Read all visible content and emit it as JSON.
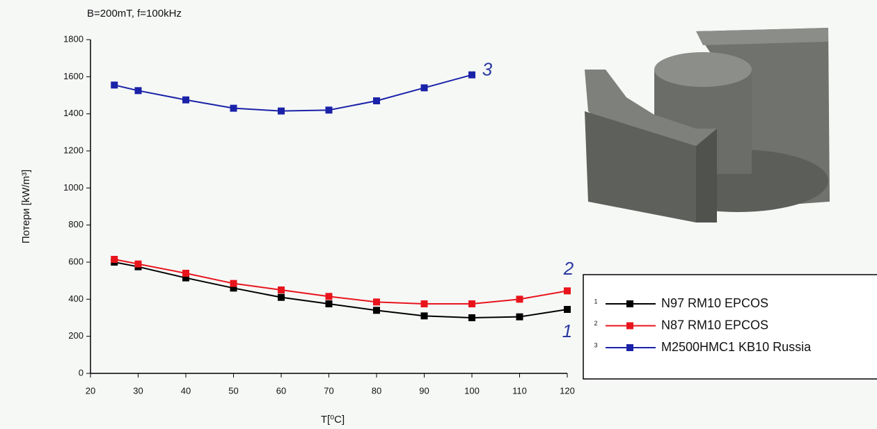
{
  "chart_data": {
    "type": "line",
    "title": "B=200mT, f=100kHz",
    "x_label": "T[⁰C]",
    "y_label": "Потери [kW/m³]",
    "xlim": [
      20,
      120
    ],
    "xticks": [
      20,
      30,
      40,
      50,
      60,
      70,
      80,
      90,
      100,
      110,
      120
    ],
    "ylim": [
      0,
      1800
    ],
    "yticks": [
      0,
      200,
      400,
      600,
      800,
      1000,
      1200,
      1400,
      1600,
      1800
    ],
    "grid": false,
    "legend": "right",
    "series": [
      {
        "name": "N97 RM10 EPCOS",
        "label": "1",
        "color": "#000000",
        "x": [
          25,
          30,
          40,
          50,
          60,
          70,
          80,
          90,
          100,
          110,
          120
        ],
        "values": [
          600,
          575,
          515,
          460,
          410,
          375,
          340,
          310,
          300,
          305,
          345
        ]
      },
      {
        "name": "N87 RM10 EPCOS",
        "label": "2",
        "color": "#e8141c",
        "x": [
          25,
          30,
          40,
          50,
          60,
          70,
          80,
          90,
          100,
          110,
          120
        ],
        "values": [
          615,
          590,
          540,
          485,
          450,
          415,
          385,
          375,
          375,
          400,
          445
        ]
      },
      {
        "name": "M2500HMC1 KB10 Russia",
        "label": "3",
        "color": "#1a22a8",
        "x": [
          25,
          30,
          40,
          50,
          60,
          70,
          80,
          90,
          100
        ],
        "values": [
          1555,
          1525,
          1475,
          1430,
          1415,
          1420,
          1470,
          1540,
          1610
        ]
      }
    ]
  }
}
